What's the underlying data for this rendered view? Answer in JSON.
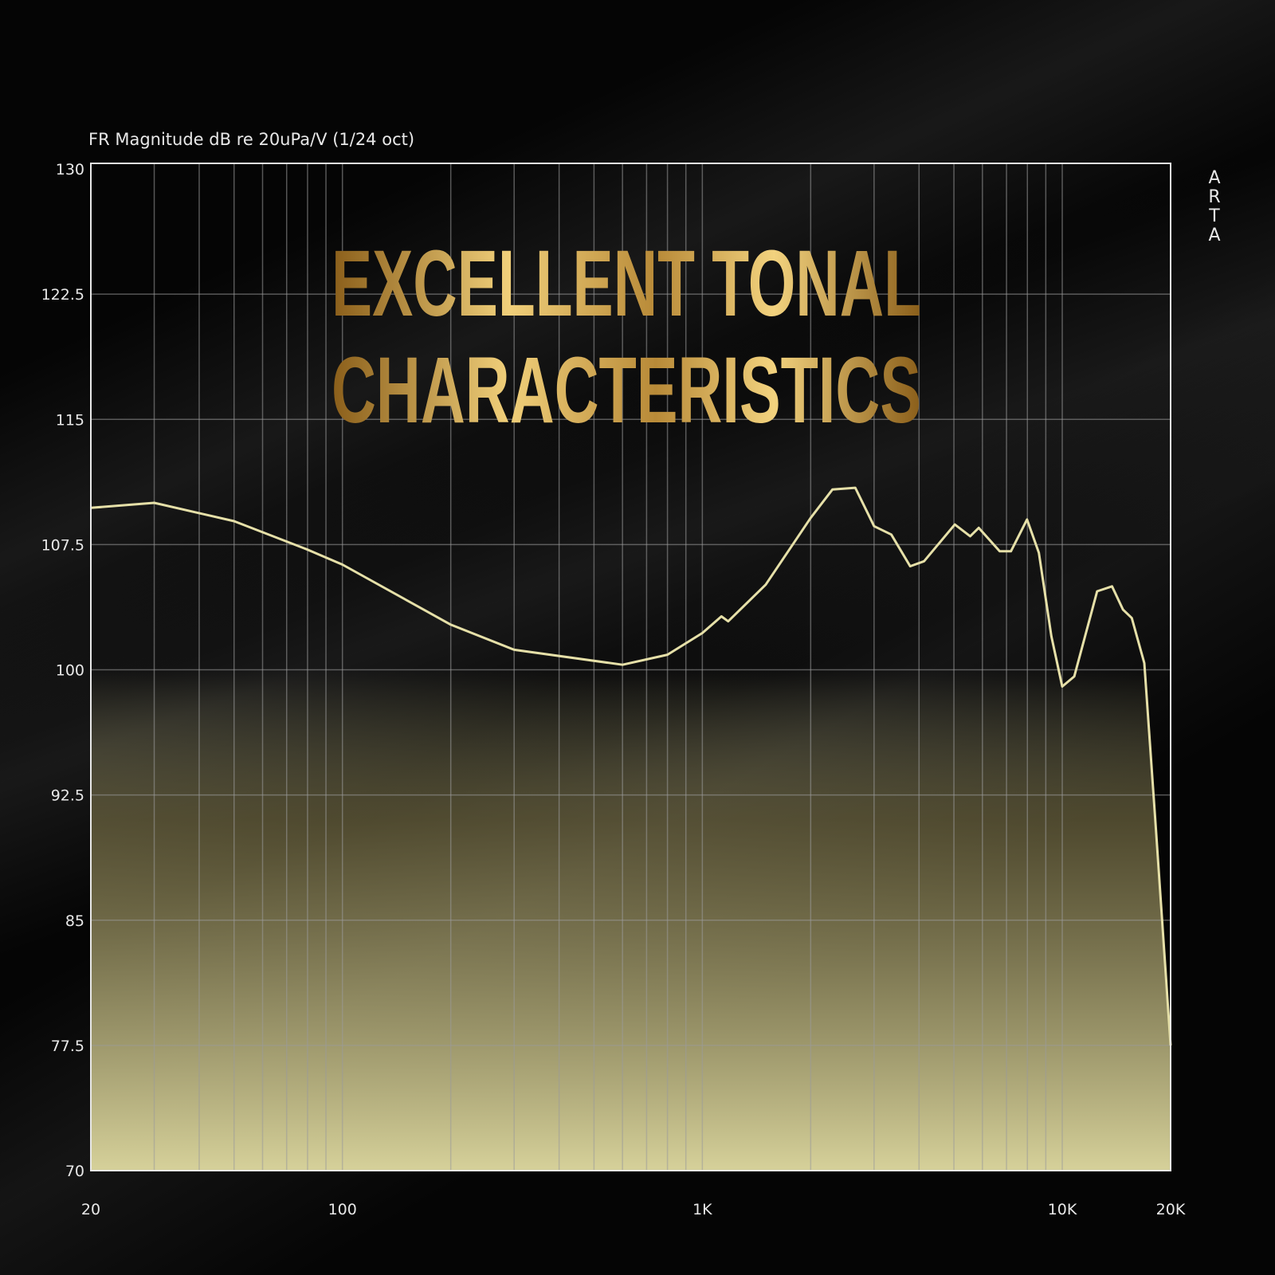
{
  "headline": {
    "line1": "EXCELLENT TONAL",
    "line2": "CHARACTERISTICS"
  },
  "chart_data": {
    "type": "area",
    "ylabel": "FR Magnitude dB re 20uPa/V (1/24 oct)",
    "watermark": "ARTA",
    "x_scale": "log",
    "xlim": [
      20,
      20000
    ],
    "ylim": [
      70,
      130
    ],
    "x_ticks": [
      {
        "v": 20,
        "label": "20"
      },
      {
        "v": 100,
        "label": "100"
      },
      {
        "v": 1000,
        "label": "1K"
      },
      {
        "v": 10000,
        "label": "10K"
      },
      {
        "v": 20000,
        "label": "20K"
      }
    ],
    "y_ticks": [
      {
        "v": 130,
        "label": "130"
      },
      {
        "v": 122.5,
        "label": "122.5"
      },
      {
        "v": 115,
        "label": "115"
      },
      {
        "v": 107.5,
        "label": "107.5"
      },
      {
        "v": 100,
        "label": "100"
      },
      {
        "v": 92.5,
        "label": "92.5"
      },
      {
        "v": 85,
        "label": "85"
      },
      {
        "v": 77.5,
        "label": "77.5"
      },
      {
        "v": 70,
        "label": "70"
      }
    ],
    "grid": true,
    "colors": {
      "line": "#e6e0a8",
      "fill_bottom": "#d6d19a",
      "grid": "#9a9a9a",
      "title_gold": "#d9b25e"
    },
    "series": [
      {
        "x": [
          20,
          30,
          50,
          80,
          100,
          200,
          300,
          600,
          800,
          1000,
          1130,
          1180,
          1500,
          2000,
          2300,
          2660,
          3000,
          3350,
          3780,
          4130,
          5030,
          5550,
          5860,
          6700,
          7200,
          7980,
          8610,
          9330,
          10000,
          10800,
          12500,
          13750,
          14750,
          15600,
          16900,
          18200,
          20000
        ],
        "y": [
          109.7,
          110.0,
          108.9,
          107.2,
          106.3,
          102.7,
          101.2,
          100.3,
          100.9,
          102.2,
          103.2,
          102.9,
          105.1,
          109.1,
          110.8,
          110.9,
          108.6,
          108.1,
          106.2,
          106.5,
          108.7,
          108.0,
          108.5,
          107.1,
          107.1,
          109.0,
          107.0,
          102.0,
          99.0,
          99.6,
          104.7,
          105.0,
          103.6,
          103.1,
          100.4,
          90.5,
          77.5
        ]
      }
    ]
  }
}
